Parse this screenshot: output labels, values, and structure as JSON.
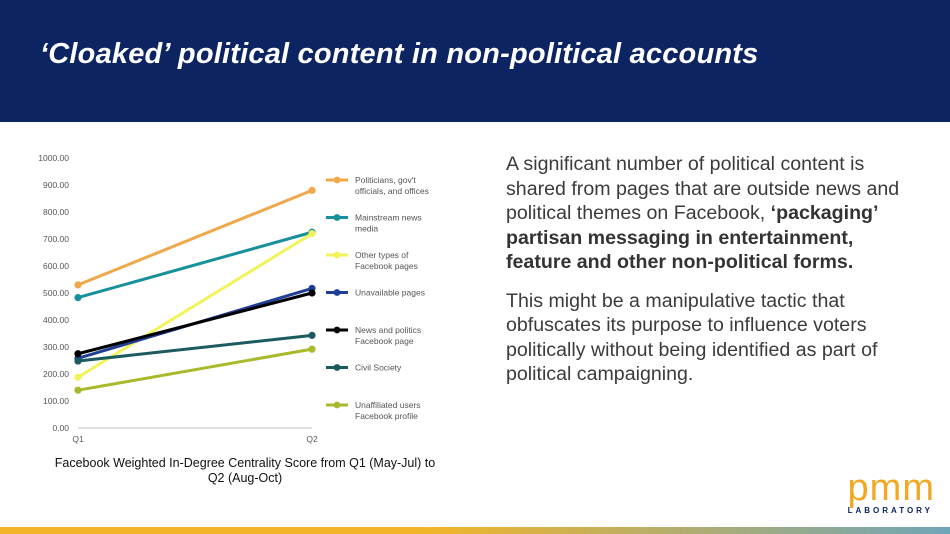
{
  "header": {
    "title": "‘Cloaked’ political content in non-political accounts",
    "background": "#0c2461"
  },
  "body": {
    "paragraph1_plain": "A significant number of political content is shared from pages that are outside news and political themes on Facebook, ",
    "paragraph1_bold": "‘packaging’ partisan messaging in entertainment, feature and other non-political forms.",
    "paragraph2": "This might be a manipulative tactic that obfuscates its purpose to influence voters politically without being identified as part of political campaigning."
  },
  "logo": {
    "main": "pmm",
    "sub": "LABORATORY",
    "color": "#f2a823"
  },
  "chart_data": {
    "type": "line",
    "title": "",
    "xlabel": "Facebook Weighted In-Degree Centrality Score from Q1 (May-Jul)  to Q2 (Aug-Oct)",
    "ylabel": "",
    "categories": [
      "Q1",
      "Q2"
    ],
    "ylim": [
      0,
      1000
    ],
    "yticks": [
      "0.00",
      "100.00",
      "200.00",
      "300.00",
      "400.00",
      "500.00",
      "600.00",
      "700.00",
      "800.00",
      "900.00",
      "1000.00"
    ],
    "grid": false,
    "legend_position": "right",
    "series": [
      {
        "name": "Politicians, gov't officials, and offices",
        "legend_lines": [
          "Politicians, gov't",
          "officials, and offices"
        ],
        "color": "#f0a84a",
        "values": [
          530,
          880
        ]
      },
      {
        "name": "Mainstream news media",
        "legend_lines": [
          "Mainstream news",
          "media"
        ],
        "color": "#16909a",
        "values": [
          483,
          725
        ]
      },
      {
        "name": "Other types of Facebook pages",
        "legend_lines": [
          "Other types of",
          "Facebook pages"
        ],
        "color": "#f2f25a",
        "values": [
          188,
          720
        ]
      },
      {
        "name": "Unavailable pages",
        "legend_lines": [
          "Unavailable pages"
        ],
        "color": "#1f3f96",
        "values": [
          258,
          517
        ]
      },
      {
        "name": "News and politics Facebook page",
        "legend_lines": [
          "News and politics",
          "Facebook page"
        ],
        "color": "#000000",
        "values": [
          275,
          500
        ]
      },
      {
        "name": "Civil Society",
        "legend_lines": [
          "Civil Society"
        ],
        "color": "#1b5a5e",
        "values": [
          248,
          343
        ]
      },
      {
        "name": "Unaffiliated users Facebook profile",
        "legend_lines": [
          "Unaffiliated users",
          "Facebook profile"
        ],
        "color": "#a9b92b",
        "values": [
          140,
          292
        ]
      }
    ]
  }
}
